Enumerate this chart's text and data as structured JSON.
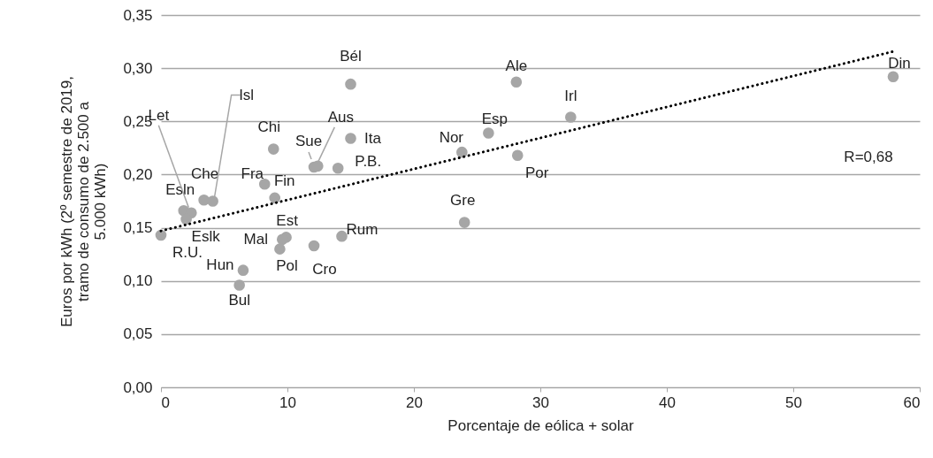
{
  "chart_data": {
    "type": "scatter",
    "xlabel": "Porcentaje de eólica + solar",
    "ylabel": "Euros por kWh (2º semestre de 2019,\ntramo de consumo de 2.500 a\n5.000 kWh)",
    "xlim": [
      0,
      60
    ],
    "xticks": [
      0,
      10,
      20,
      30,
      40,
      50,
      60
    ],
    "ylim": [
      0,
      0.35
    ],
    "yticks": [
      {
        "value": 0,
        "label": "0,00"
      },
      {
        "value": 0.05,
        "label": "0,05"
      },
      {
        "value": 0.1,
        "label": "0,10"
      },
      {
        "value": 0.15,
        "label": "0,15"
      },
      {
        "value": 0.2,
        "label": "0,20"
      },
      {
        "value": 0.25,
        "label": "0,25"
      },
      {
        "value": 0.3,
        "label": "0,30"
      },
      {
        "value": 0.35,
        "label": "0,35"
      }
    ],
    "grid": "y",
    "series": [
      {
        "color": "#a6a6a6",
        "x": [
          0,
          1.8,
          2.4,
          2.0,
          3.4,
          4.1,
          8.9,
          8.2,
          9.0,
          15.0,
          15.0,
          12.1,
          12.4,
          14.0,
          9.9,
          9.6,
          9.4,
          12.1,
          14.3,
          6.5,
          6.2,
          24.0,
          23.8,
          25.9,
          28.1,
          32.4,
          28.2,
          57.9
        ],
        "values": [
          0.143,
          0.166,
          0.164,
          0.158,
          0.176,
          0.175,
          0.224,
          0.191,
          0.178,
          0.285,
          0.234,
          0.207,
          0.208,
          0.206,
          0.141,
          0.139,
          0.13,
          0.133,
          0.142,
          0.11,
          0.096,
          0.155,
          0.221,
          0.239,
          0.287,
          0.254,
          0.218,
          0.292
        ]
      },
      {
        "type": "line",
        "color": "#000000",
        "line_style": "dotted",
        "x": [
          0,
          58
        ],
        "values": [
          0.147,
          0.316
        ]
      }
    ],
    "annotations": [
      {
        "text": "R.U.",
        "x": 0,
        "y": 0.143
      },
      {
        "text": "Esln",
        "x": 1.8,
        "y": 0.166
      },
      {
        "text": "Let",
        "x": 2.4,
        "y": 0.164
      },
      {
        "text": "Eslk",
        "x": 2.0,
        "y": 0.158
      },
      {
        "text": "Che",
        "x": 3.4,
        "y": 0.176
      },
      {
        "text": "Isl",
        "x": 4.1,
        "y": 0.175
      },
      {
        "text": "Chi",
        "x": 8.9,
        "y": 0.224
      },
      {
        "text": "Fra",
        "x": 8.2,
        "y": 0.191
      },
      {
        "text": "Fin",
        "x": 9.0,
        "y": 0.178
      },
      {
        "text": "Bél",
        "x": 15.0,
        "y": 0.285
      },
      {
        "text": "Ita",
        "x": 15.0,
        "y": 0.234
      },
      {
        "text": "Sue",
        "x": 12.1,
        "y": 0.207
      },
      {
        "text": "Aus",
        "x": 12.4,
        "y": 0.208
      },
      {
        "text": "P.B.",
        "x": 14.0,
        "y": 0.206
      },
      {
        "text": "Est",
        "x": 9.9,
        "y": 0.141
      },
      {
        "text": "Mal",
        "x": 9.6,
        "y": 0.139
      },
      {
        "text": "Pol",
        "x": 9.4,
        "y": 0.13
      },
      {
        "text": "Cro",
        "x": 12.1,
        "y": 0.133
      },
      {
        "text": "Rum",
        "x": 14.3,
        "y": 0.142
      },
      {
        "text": "Hun",
        "x": 6.5,
        "y": 0.11
      },
      {
        "text": "Bul",
        "x": 6.2,
        "y": 0.096
      },
      {
        "text": "Gre",
        "x": 24.0,
        "y": 0.155
      },
      {
        "text": "Nor",
        "x": 23.8,
        "y": 0.221
      },
      {
        "text": "Esp",
        "x": 25.9,
        "y": 0.239
      },
      {
        "text": "Ale",
        "x": 28.1,
        "y": 0.287
      },
      {
        "text": "Irl",
        "x": 32.4,
        "y": 0.254
      },
      {
        "text": "Por",
        "x": 28.2,
        "y": 0.218
      },
      {
        "text": "Din",
        "x": 57.9,
        "y": 0.292
      },
      "R=0,68"
    ]
  }
}
